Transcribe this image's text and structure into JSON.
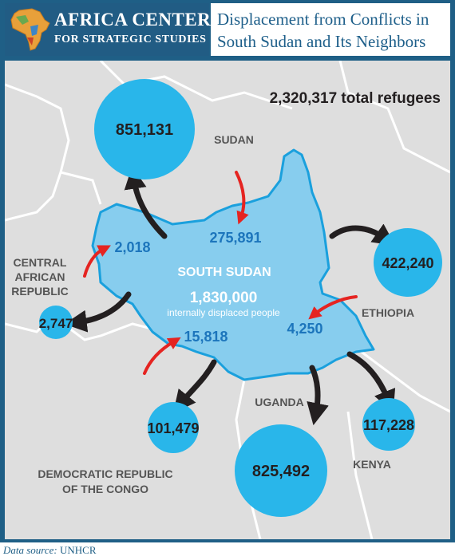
{
  "header": {
    "org_name_line1": "AFRICA CENTER",
    "org_name_line2": "FOR STRATEGIC STUDIES",
    "title_line1": "Displacement from Conflicts in",
    "title_line2": "South Sudan and Its Neighbors"
  },
  "map": {
    "total_refugees_label": "2,320,317 total refugees",
    "country_labels": {
      "sudan": "SUDAN",
      "south_sudan": "SOUTH SUDAN",
      "ethiopia": "ETHIOPIA",
      "car_line1": "CENTRAL",
      "car_line2": "AFRICAN",
      "car_line3": "REPUBLIC",
      "uganda": "UGANDA",
      "kenya": "KENYA",
      "drc_line1": "DEMOCRATIC REPUBLIC",
      "drc_line2": "OF THE CONGO"
    },
    "idp": {
      "value": "1,830,000",
      "label": "internally displaced people"
    },
    "refugees_out": {
      "sudan": "851,131",
      "ethiopia": "422,240",
      "kenya": "117,228",
      "uganda": "825,492",
      "drc": "101,479",
      "car": "2,747"
    },
    "refugees_in": {
      "from_sudan": "275,891",
      "from_car": "2,018",
      "from_ethiopia": "4,250",
      "from_drc": "15,818"
    },
    "colors": {
      "bubble": "#29b6ea",
      "south_sudan_fill": "#87cdee",
      "south_sudan_border": "#1aa0dd",
      "map_bg": "#dedede",
      "border_lines": "#ffffff",
      "outflow_arrow": "#231f20",
      "inflow_arrow": "#e52421",
      "inflow_text": "#1c75bc"
    }
  },
  "footer": {
    "source_label": "Data source:",
    "source_value": "UNHCR"
  }
}
